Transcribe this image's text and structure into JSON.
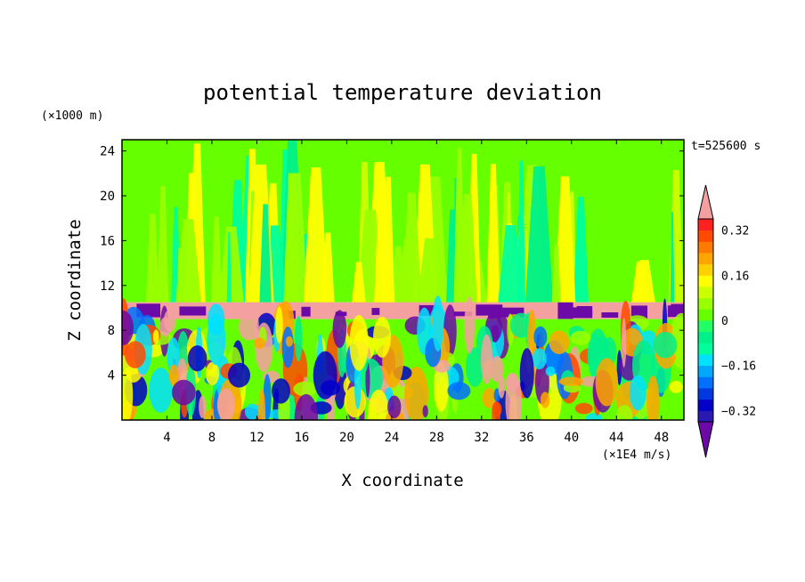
{
  "chart_data": {
    "type": "heatmap",
    "title": "potential temperature deviation",
    "xlabel": "X coordinate",
    "ylabel": "Z coordinate",
    "x_units": "(×1E4 m/s)",
    "y_units": "(×1000 m)",
    "time_label": "t=525600 s",
    "xlim": [
      0,
      50
    ],
    "ylim": [
      0,
      25
    ],
    "x_ticks": [
      4,
      8,
      12,
      16,
      20,
      24,
      28,
      32,
      36,
      40,
      44,
      48
    ],
    "y_ticks": [
      4,
      8,
      12,
      16,
      20,
      24
    ],
    "colorbar": {
      "levels": [
        -0.4,
        -0.36,
        -0.32,
        -0.28,
        -0.24,
        -0.2,
        -0.16,
        -0.12,
        -0.08,
        -0.04,
        0,
        0.04,
        0.08,
        0.12,
        0.16,
        0.2,
        0.24,
        0.28,
        0.32,
        0.36,
        0.4
      ],
      "labeled_ticks": [
        -0.32,
        -0.16,
        0,
        0.16,
        0.32
      ],
      "tick_labels": [
        "−0.32",
        "−0.16",
        "0",
        "0.16",
        "0.32"
      ],
      "colors": [
        "#6b0aa6",
        "#2a1ab3",
        "#0000c8",
        "#0038e0",
        "#0070ff",
        "#00a8ff",
        "#00e0ff",
        "#00ff9c",
        "#00f08a",
        "#22ff66",
        "#66ff00",
        "#99ff00",
        "#ccff00",
        "#ffff00",
        "#ffd000",
        "#ffa500",
        "#ff7a00",
        "#ff4a00",
        "#ff2020",
        "#f4a0a0"
      ],
      "extend": "both"
    },
    "layers": [
      {
        "z_range": [
          0,
          9
        ],
        "pattern": "turbulent eddies, values roughly -0.4 to 0.4"
      },
      {
        "z_range": [
          9,
          10.5
        ],
        "pattern": "positive band about 0.4 with negative patches about -0.4"
      },
      {
        "z_range": [
          10.5,
          25
        ],
        "pattern": "vertical streaks near 0, between -0.16 and 0.16"
      }
    ]
  }
}
